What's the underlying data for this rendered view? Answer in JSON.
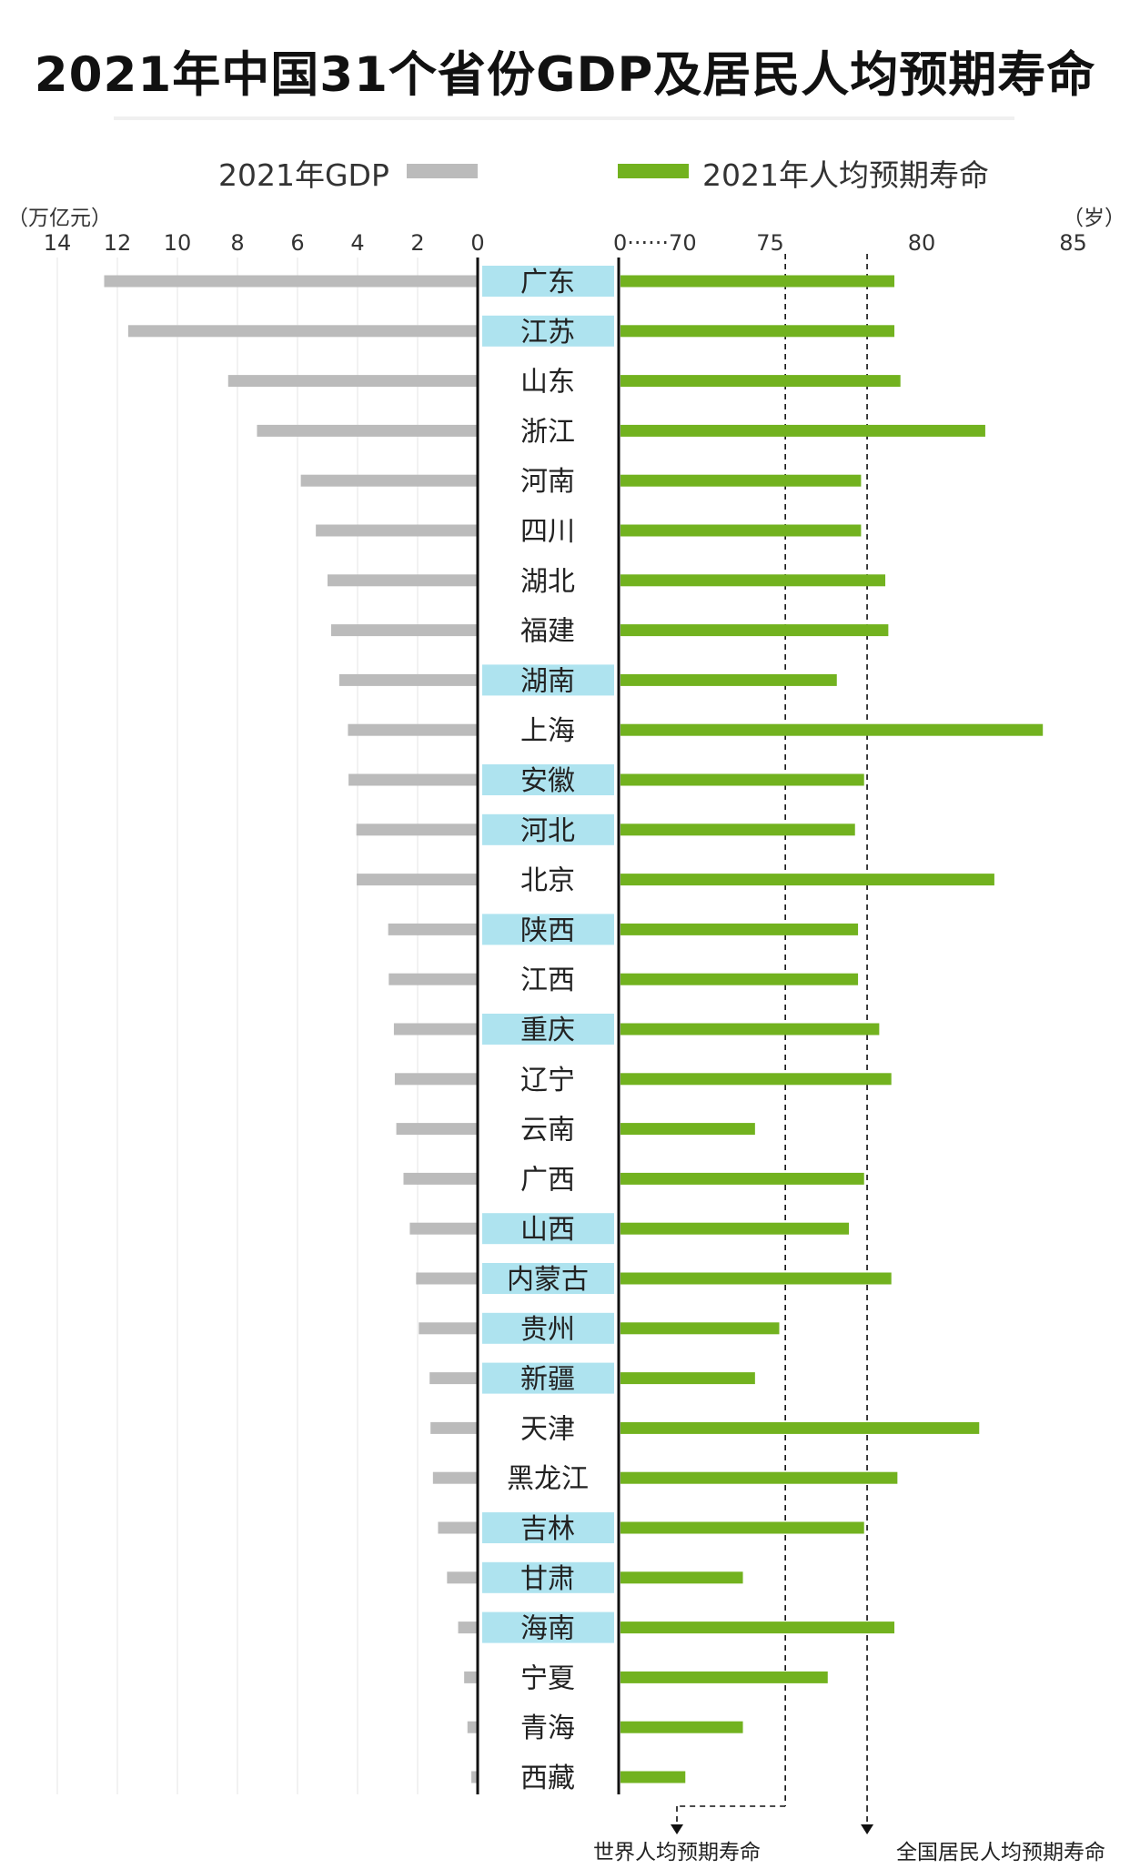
{
  "title": "2021年中国31个省份GDP及居民人均预期寿命",
  "legend": {
    "gdp": "2021年GDP",
    "life": "2021年人均预期寿命"
  },
  "units": {
    "gdp": "（万亿元）",
    "life": "（岁）"
  },
  "colors": {
    "gdp_bar": "#bbbbbb",
    "life_bar": "#72b21f",
    "highlight": "#aee3ef",
    "axis": "#111111"
  },
  "chart_data": {
    "type": "bar",
    "title": "2021年中国31个省份GDP及居民人均预期寿命",
    "categories": [
      "广东",
      "江苏",
      "山东",
      "浙江",
      "河南",
      "四川",
      "湖北",
      "福建",
      "湖南",
      "上海",
      "安徽",
      "河北",
      "北京",
      "陕西",
      "江西",
      "重庆",
      "辽宁",
      "云南",
      "广西",
      "山西",
      "内蒙古",
      "贵州",
      "新疆",
      "天津",
      "黑龙江",
      "吉林",
      "甘肃",
      "海南",
      "宁夏",
      "青海",
      "西藏"
    ],
    "highlighted": [
      true,
      true,
      false,
      false,
      false,
      false,
      false,
      false,
      true,
      false,
      true,
      true,
      false,
      true,
      false,
      true,
      false,
      false,
      false,
      true,
      true,
      true,
      true,
      false,
      false,
      true,
      true,
      true,
      false,
      false,
      false
    ],
    "series": [
      {
        "name": "2021年GDP",
        "unit": "万亿元",
        "values": [
          12.44,
          11.64,
          8.31,
          7.35,
          5.89,
          5.39,
          5.0,
          4.88,
          4.61,
          4.32,
          4.3,
          4.04,
          4.03,
          2.98,
          2.96,
          2.79,
          2.76,
          2.71,
          2.47,
          2.26,
          2.05,
          1.96,
          1.6,
          1.57,
          1.49,
          1.32,
          1.02,
          0.65,
          0.45,
          0.34,
          0.21
        ]
      },
      {
        "name": "2021年人均预期寿命",
        "unit": "岁",
        "values": [
          79.1,
          79.1,
          79.3,
          82.1,
          78.0,
          78.0,
          78.8,
          78.9,
          77.2,
          84.0,
          78.1,
          77.8,
          82.4,
          77.9,
          77.9,
          78.6,
          79.0,
          74.5,
          78.1,
          77.6,
          79.0,
          75.3,
          74.5,
          81.9,
          79.2,
          78.1,
          74.1,
          79.1,
          76.9,
          74.1,
          72.2
        ]
      }
    ],
    "gdp_axis": {
      "ticks": [
        "14",
        "12",
        "10",
        "8",
        "6",
        "4",
        "2",
        "0"
      ],
      "range": [
        0,
        14
      ],
      "reversed": true
    },
    "life_axis": {
      "ticks": [
        "0······70",
        "75",
        "80",
        "85"
      ],
      "range": [
        70,
        85
      ],
      "broken_from_zero": true
    },
    "reference_lines": [
      {
        "label": "世界人均预期寿命",
        "value": 75.5
      },
      {
        "label": "全国居民人均预期寿命",
        "value": 78.2
      }
    ]
  }
}
